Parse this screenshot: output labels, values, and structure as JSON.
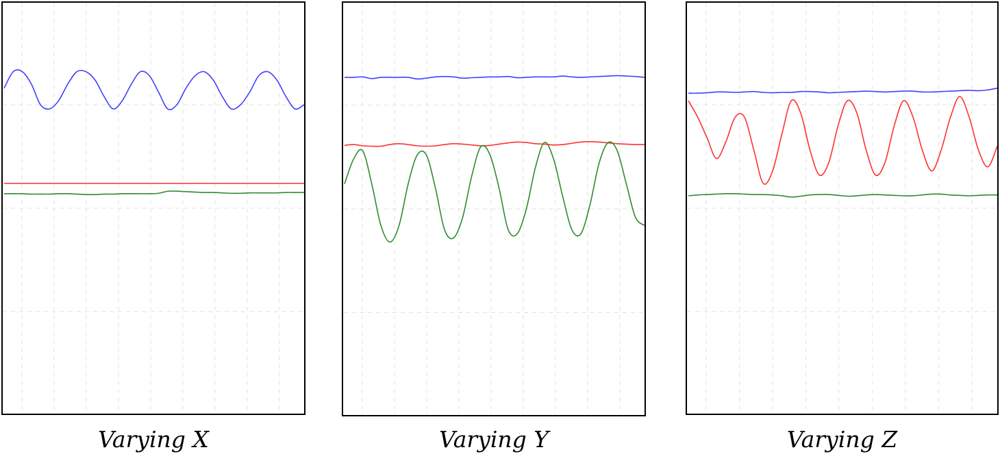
{
  "chart_data": [
    {
      "type": "line",
      "title": "Varying X",
      "xlabel": "",
      "ylabel": "",
      "grid": true,
      "series_colors": [
        "#4040ff",
        "#ff3030",
        "#2e8b2e"
      ],
      "series": [
        {
          "values": [
            0.79,
            0.83,
            0.83,
            0.8,
            0.75,
            0.74,
            0.76,
            0.8,
            0.83,
            0.83,
            0.81,
            0.77,
            0.74,
            0.76,
            0.8,
            0.83,
            0.82,
            0.78,
            0.74,
            0.75,
            0.79,
            0.82,
            0.83,
            0.81,
            0.77,
            0.74,
            0.75,
            0.78,
            0.82,
            0.83,
            0.81,
            0.77,
            0.74,
            0.75
          ]
        },
        {
          "values": [
            0.56,
            0.56,
            0.56,
            0.56,
            0.56,
            0.56,
            0.56,
            0.56,
            0.56,
            0.56,
            0.56,
            0.56,
            0.56,
            0.56,
            0.56,
            0.56,
            0.56,
            0.56,
            0.56,
            0.56,
            0.56,
            0.56,
            0.56,
            0.56,
            0.56,
            0.56,
            0.56,
            0.56,
            0.56,
            0.56,
            0.56,
            0.56,
            0.56,
            0.56
          ]
        },
        {
          "values": [
            0.535,
            0.535,
            0.535,
            0.534,
            0.534,
            0.534,
            0.535,
            0.535,
            0.534,
            0.533,
            0.533,
            0.534,
            0.534,
            0.535,
            0.535,
            0.535,
            0.535,
            0.536,
            0.541,
            0.541,
            0.54,
            0.539,
            0.538,
            0.538,
            0.537,
            0.536,
            0.536,
            0.537,
            0.537,
            0.537,
            0.537,
            0.538,
            0.538,
            0.538
          ]
        }
      ]
    },
    {
      "type": "line",
      "title": "Varying Y",
      "xlabel": "",
      "ylabel": "",
      "grid": true,
      "series_colors": [
        "#4040ff",
        "#ff3030",
        "#2e8b2e"
      ],
      "series": [
        {
          "values": [
            0.817,
            0.817,
            0.818,
            0.814,
            0.817,
            0.817,
            0.817,
            0.817,
            0.813,
            0.815,
            0.818,
            0.819,
            0.818,
            0.815,
            0.816,
            0.817,
            0.818,
            0.818,
            0.819,
            0.816,
            0.817,
            0.818,
            0.818,
            0.818,
            0.82,
            0.818,
            0.817,
            0.818,
            0.819,
            0.82,
            0.821,
            0.82,
            0.819,
            0.817
          ]
        },
        {
          "values": [
            0.653,
            0.655,
            0.652,
            0.651,
            0.651,
            0.655,
            0.657,
            0.655,
            0.652,
            0.651,
            0.652,
            0.655,
            0.657,
            0.656,
            0.654,
            0.652,
            0.653,
            0.656,
            0.659,
            0.661,
            0.66,
            0.657,
            0.656,
            0.654,
            0.655,
            0.658,
            0.661,
            0.662,
            0.661,
            0.659,
            0.657,
            0.656,
            0.655,
            0.655
          ]
        },
        {
          "values": [
            0.56,
            0.62,
            0.64,
            0.56,
            0.46,
            0.42,
            0.46,
            0.56,
            0.63,
            0.63,
            0.55,
            0.45,
            0.43,
            0.48,
            0.58,
            0.65,
            0.63,
            0.55,
            0.45,
            0.44,
            0.5,
            0.6,
            0.66,
            0.62,
            0.53,
            0.45,
            0.44,
            0.51,
            0.61,
            0.66,
            0.64,
            0.56,
            0.48,
            0.46
          ]
        }
      ]
    },
    {
      "type": "line",
      "title": "Varying Z",
      "xlabel": "",
      "ylabel": "",
      "grid": true,
      "series_colors": [
        "#4040ff",
        "#ff3030",
        "#2e8b2e"
      ],
      "series": [
        {
          "values": [
            0.778,
            0.778,
            0.779,
            0.781,
            0.781,
            0.78,
            0.781,
            0.782,
            0.78,
            0.779,
            0.78,
            0.78,
            0.782,
            0.782,
            0.781,
            0.779,
            0.78,
            0.781,
            0.782,
            0.783,
            0.782,
            0.781,
            0.782,
            0.783,
            0.783,
            0.781,
            0.781,
            0.782,
            0.783,
            0.784,
            0.785,
            0.784,
            0.786,
            0.79
          ]
        },
        {
          "values": [
            0.76,
            0.72,
            0.67,
            0.62,
            0.66,
            0.72,
            0.72,
            0.64,
            0.56,
            0.59,
            0.68,
            0.76,
            0.73,
            0.64,
            0.58,
            0.61,
            0.7,
            0.76,
            0.73,
            0.64,
            0.58,
            0.61,
            0.7,
            0.76,
            0.72,
            0.64,
            0.59,
            0.64,
            0.72,
            0.77,
            0.72,
            0.64,
            0.6,
            0.65
          ]
        },
        {
          "values": [
            0.53,
            0.532,
            0.533,
            0.534,
            0.535,
            0.535,
            0.534,
            0.533,
            0.533,
            0.532,
            0.53,
            0.527,
            0.529,
            0.532,
            0.533,
            0.533,
            0.531,
            0.529,
            0.53,
            0.532,
            0.533,
            0.532,
            0.531,
            0.53,
            0.53,
            0.532,
            0.534,
            0.534,
            0.532,
            0.531,
            0.53,
            0.531,
            0.532,
            0.532
          ]
        }
      ]
    }
  ]
}
